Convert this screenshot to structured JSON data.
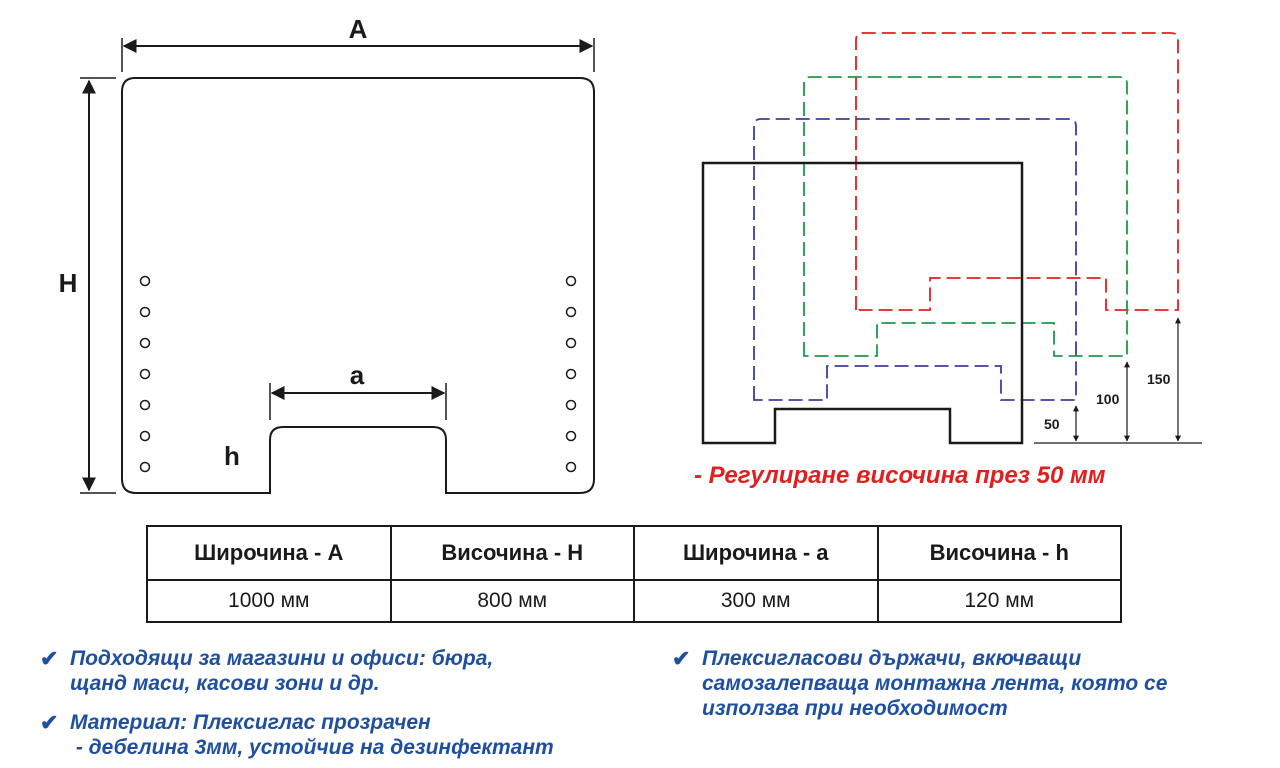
{
  "diagram": {
    "labels": {
      "width_A": "A",
      "height_H": "H",
      "window_width_a": "a",
      "window_height_h": "h"
    },
    "height_marks": [
      "50",
      "100",
      "150"
    ],
    "colors": {
      "outline": "#1a1a1a",
      "level_50": "#3b3f9e",
      "level_100": "#1e9a4a",
      "level_150": "#e0201f"
    },
    "adjustment_note": "- Регулиране височина през 50 мм"
  },
  "specs": {
    "headers": [
      "Широчина - A",
      "Височина - H",
      "Широчина - a",
      "Височина - h"
    ],
    "values": [
      "1000 мм",
      "800 мм",
      "300 мм",
      "120 мм"
    ]
  },
  "features": [
    {
      "icon": "checkmark-icon",
      "mark": "✔",
      "lines": [
        "Подходящи за магазини и офиси: бюра,",
        "щанд маси, касови зони и др."
      ]
    },
    {
      "icon": "checkmark-icon",
      "mark": "✔",
      "lines": [
        "Материал: Плексиглас прозрачен",
        " - дебелина 3мм, устойчив на дезинфектант"
      ]
    },
    {
      "icon": "checkmark-icon",
      "mark": "✔",
      "lines": [
        "Плексигласови държачи, вкючващи",
        "самозалепваща монтажна лента, която се",
        "използва при необходимост"
      ]
    }
  ],
  "feature_color": "#1f4fa0"
}
